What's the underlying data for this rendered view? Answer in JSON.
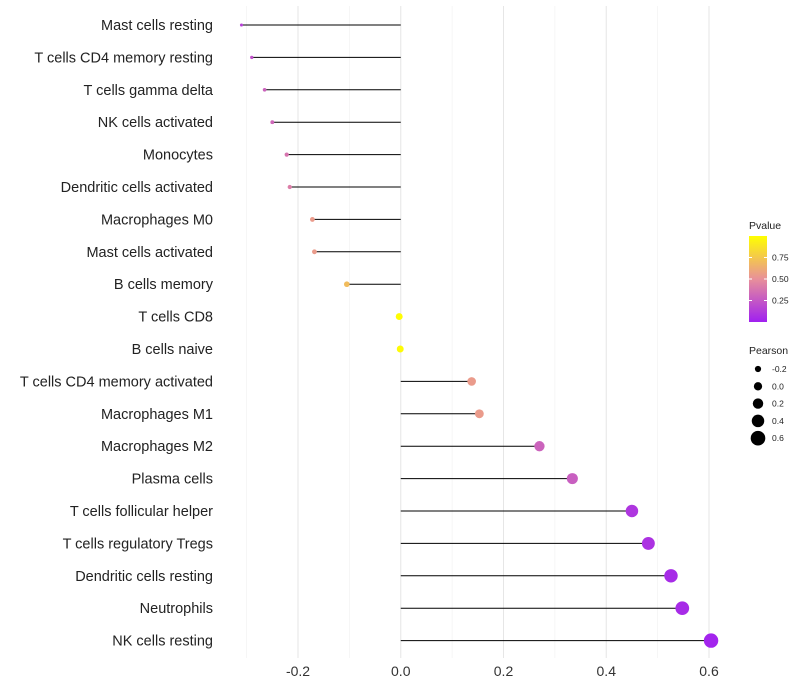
{
  "chart_data": {
    "type": "lollipop",
    "orientation": "horizontal",
    "categories": [
      "Mast cells resting",
      "T cells CD4 memory resting",
      "T cells gamma delta",
      "NK cells activated",
      "Monocytes",
      "Dendritic cells activated",
      "Macrophages M0",
      "Mast cells activated",
      "B cells memory",
      "T cells CD8",
      "B cells naive",
      "T cells CD4 memory activated",
      "Macrophages M1",
      "Macrophages M2",
      "Plasma cells",
      "T cells follicular helper",
      "T cells regulatory  Tregs",
      "Dendritic cells resting",
      "Neutrophils",
      "NK cells resting"
    ],
    "pearson": [
      -0.31,
      -0.29,
      -0.265,
      -0.25,
      -0.222,
      -0.216,
      -0.172,
      -0.168,
      -0.105,
      -0.003,
      -0.001,
      0.138,
      0.153,
      0.27,
      0.334,
      0.45,
      0.482,
      0.526,
      0.548,
      0.604
    ],
    "pvalue": [
      0.15,
      0.22,
      0.3,
      0.32,
      0.38,
      0.42,
      0.55,
      0.55,
      0.7,
      0.99,
      0.98,
      0.55,
      0.55,
      0.3,
      0.28,
      0.1,
      0.08,
      0.05,
      0.05,
      0.02
    ],
    "xlim": [
      -0.32,
      0.62
    ],
    "xticks": [
      -0.2,
      0.0,
      0.2,
      0.4,
      0.6
    ],
    "xtick_labels": [
      "-0.2",
      "0.0",
      "0.2",
      "0.4",
      "0.6"
    ],
    "xlabel": "",
    "ylabel": "",
    "grid": true,
    "colors": {
      "low": "#a020f0",
      "mid": "#e8909a",
      "high": "#ffff00",
      "stem": "#000000",
      "grid": "#ececec"
    },
    "legend_color": {
      "title": "Pvalue",
      "ticks": [
        0.25,
        0.5,
        0.75
      ],
      "tick_labels": [
        "0.25",
        "0.50",
        "0.75"
      ],
      "range": [
        0,
        1
      ]
    },
    "legend_size": {
      "title": "Pearson",
      "values": [
        -0.2,
        0.0,
        0.2,
        0.4,
        0.6
      ],
      "labels": [
        "-0.2",
        "0.0",
        "0.2",
        "0.4",
        "0.6"
      ]
    },
    "size_range": [
      -0.32,
      0.62
    ]
  }
}
